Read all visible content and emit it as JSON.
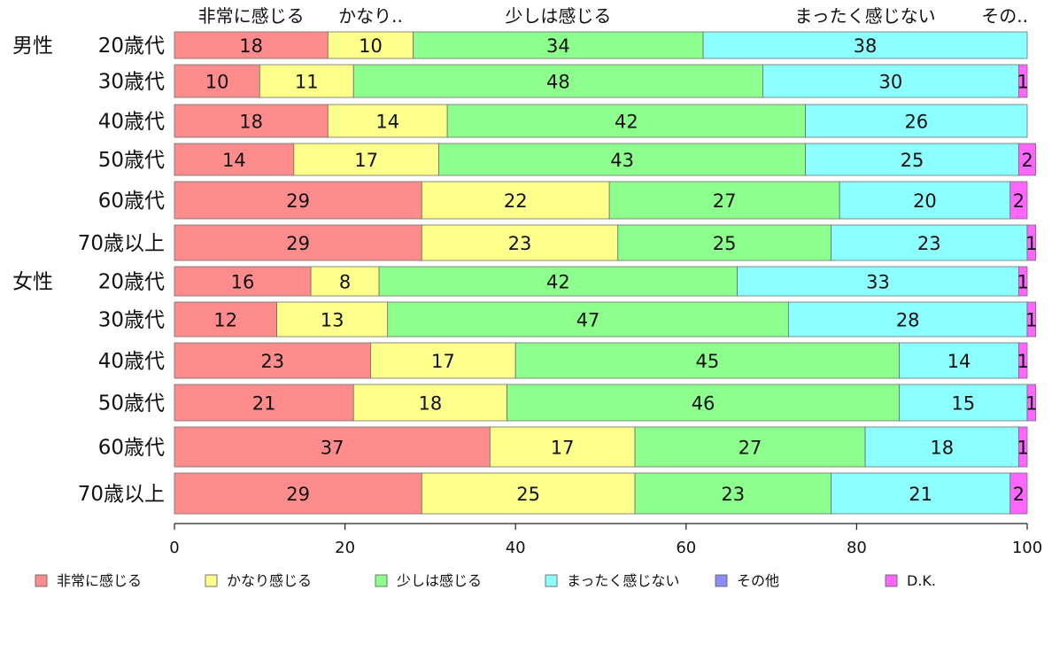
{
  "chart_data": {
    "type": "bar",
    "orientation": "horizontal",
    "stacked": true,
    "categories": [
      {
        "group": "男性",
        "age": "20歳代"
      },
      {
        "group": "",
        "age": "30歳代"
      },
      {
        "group": "",
        "age": "40歳代"
      },
      {
        "group": "",
        "age": "50歳代"
      },
      {
        "group": "",
        "age": "60歳代"
      },
      {
        "group": "",
        "age": "70歳以上"
      },
      {
        "group": "女性",
        "age": "20歳代"
      },
      {
        "group": "",
        "age": "30歳代"
      },
      {
        "group": "",
        "age": "40歳代"
      },
      {
        "group": "",
        "age": "50歳代"
      },
      {
        "group": "",
        "age": "60歳代"
      },
      {
        "group": "",
        "age": "70歳以上"
      }
    ],
    "series": [
      {
        "name": "非常に感じる",
        "short": "非常に感じる",
        "color": "#ff8c8c",
        "values": [
          18,
          10,
          18,
          14,
          29,
          29,
          16,
          12,
          23,
          21,
          37,
          29
        ]
      },
      {
        "name": "かなり感じる",
        "short": "かなり..",
        "color": "#ffff8c",
        "values": [
          10,
          11,
          14,
          17,
          22,
          23,
          8,
          13,
          17,
          18,
          17,
          25
        ]
      },
      {
        "name": "少しは感じる",
        "short": "少しは感じる",
        "color": "#8cff8c",
        "values": [
          34,
          48,
          42,
          43,
          27,
          25,
          42,
          47,
          45,
          46,
          27,
          23
        ]
      },
      {
        "name": "まったく感じない",
        "short": "まったく感じない",
        "color": "#8cffff",
        "values": [
          38,
          30,
          26,
          25,
          20,
          23,
          33,
          28,
          14,
          15,
          18,
          21
        ]
      },
      {
        "name": "その他",
        "short": "その..",
        "color": "#8c8cff",
        "values": [
          0,
          0,
          0,
          0,
          0,
          0,
          0,
          0,
          0,
          0,
          0,
          0
        ]
      },
      {
        "name": "D.K.",
        "short": "",
        "color": "#ff66ff",
        "values": [
          0,
          1,
          0,
          2,
          2,
          1,
          1,
          1,
          1,
          1,
          1,
          2
        ]
      }
    ],
    "xlim": [
      0,
      100
    ],
    "x_ticks": [
      "0",
      "20",
      "40",
      "60",
      "80",
      "100"
    ],
    "legend_position": "bottom",
    "grid": false
  }
}
